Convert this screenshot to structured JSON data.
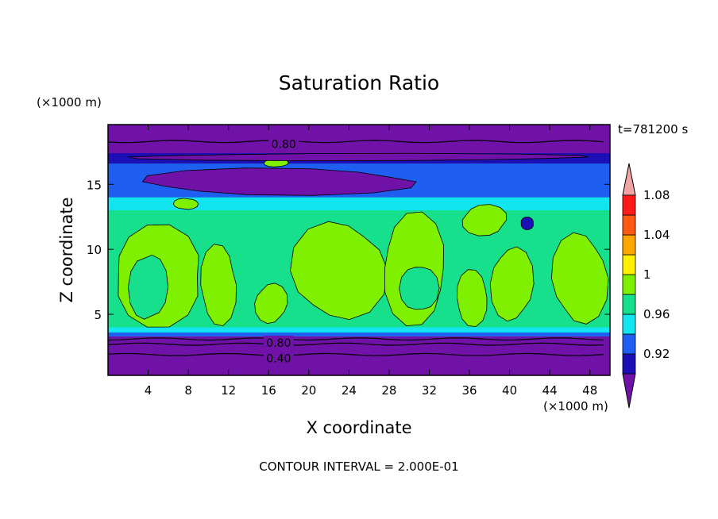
{
  "chart_data": {
    "type": "heatmap",
    "title": "Saturation Ratio",
    "xlabel": "X coordinate",
    "ylabel": "Z coordinate",
    "x_unit": "(×1000 m)",
    "y_unit": "(×1000 m)",
    "time_label": "t=781200 s",
    "footer": "CONTOUR INTERVAL = 2.000E-01",
    "xlim": [
      0,
      50
    ],
    "ylim": [
      0.3,
      19.6
    ],
    "x_ticks": [
      4,
      8,
      12,
      16,
      20,
      24,
      28,
      32,
      36,
      40,
      44,
      48
    ],
    "y_ticks": [
      5,
      10,
      15
    ],
    "contour_labels": [
      {
        "text": "0.80",
        "x": 17.5,
        "y": 18.1
      },
      {
        "text": "0.80",
        "x": 17.0,
        "y": 2.8
      },
      {
        "text": "0.40",
        "x": 17.0,
        "y": 1.6
      }
    ],
    "colorbar": {
      "levels": [
        0.92,
        0.94,
        0.96,
        0.98,
        1.0,
        1.02,
        1.04,
        1.06,
        1.08
      ],
      "tick_labels": [
        "0.92",
        "0.96",
        "1",
        "1.04",
        "1.08"
      ],
      "colors": [
        "#7012a8",
        "#1b0fb5",
        "#1e5ef0",
        "#12e4f0",
        "#16e08c",
        "#7ff000",
        "#fff000",
        "#ffa500",
        "#ff5a12",
        "#ff1a1a",
        "#f2a3a3"
      ]
    },
    "bands": [
      {
        "z0": 0.3,
        "z1": 3.3,
        "color": "#7012a8"
      },
      {
        "z0": 3.3,
        "z1": 3.6,
        "color": "#1e5ef0"
      },
      {
        "z0": 3.6,
        "z1": 4.0,
        "color": "#12e4f0"
      },
      {
        "z0": 4.0,
        "z1": 13.0,
        "color": "#16e08c"
      },
      {
        "z0": 13.0,
        "z1": 14.0,
        "color": "#12e4f0"
      },
      {
        "z0": 14.0,
        "z1": 16.6,
        "color": "#1e5ef0"
      },
      {
        "z0": 16.6,
        "z1": 17.4,
        "color": "#1b0fb5"
      },
      {
        "z0": 17.4,
        "z1": 19.6,
        "color": "#7012a8"
      }
    ],
    "patches": [
      {
        "x": [
          0.0,
          10.0
        ],
        "z": [
          3.9,
          12.0
        ],
        "color": "#7ff000"
      },
      {
        "x": [
          2.0,
          6.0
        ],
        "z": [
          4.2,
          10.0
        ],
        "color": "#16e08c"
      },
      {
        "x": [
          9.0,
          13.0
        ],
        "z": [
          4.0,
          10.5
        ],
        "color": "#7ff000"
      },
      {
        "x": [
          14.5,
          18.0
        ],
        "z": [
          4.2,
          7.5
        ],
        "color": "#7ff000"
      },
      {
        "x": [
          18.0,
          28.0
        ],
        "z": [
          4.2,
          12.5
        ],
        "color": "#7ff000"
      },
      {
        "x": [
          27.0,
          34.0
        ],
        "z": [
          4.0,
          13.0
        ],
        "color": "#7ff000"
      },
      {
        "x": [
          29.0,
          33.0
        ],
        "z": [
          5.0,
          9.0
        ],
        "color": "#16e08c"
      },
      {
        "x": [
          34.5,
          38.0
        ],
        "z": [
          4.0,
          8.5
        ],
        "color": "#7ff000"
      },
      {
        "x": [
          38.0,
          42.5
        ],
        "z": [
          4.2,
          10.5
        ],
        "color": "#7ff000"
      },
      {
        "x": [
          44.0,
          50.0
        ],
        "z": [
          4.0,
          11.5
        ],
        "color": "#7ff000"
      },
      {
        "x": [
          35.0,
          40.0
        ],
        "z": [
          11.0,
          13.5
        ],
        "color": "#7ff000"
      },
      {
        "x": [
          6.5,
          9.0
        ],
        "z": [
          13.0,
          14.0
        ],
        "color": "#7ff000"
      },
      {
        "x": [
          41.0,
          42.5
        ],
        "z": [
          11.5,
          12.5
        ],
        "color": "#1b0fb5"
      },
      {
        "x": [
          15.5,
          18.0
        ],
        "z": [
          16.3,
          17.0
        ],
        "color": "#7ff000"
      },
      {
        "x": [
          2.0,
          32.0
        ],
        "z": [
          14.1,
          16.3
        ],
        "color": "#7012a8"
      },
      {
        "x": [
          0.0,
          50.0
        ],
        "z": [
          16.8,
          17.4
        ],
        "color": "#7012a8"
      }
    ],
    "contour_lines": [
      {
        "z": 18.3
      },
      {
        "z": 3.1
      },
      {
        "z": 2.7
      },
      {
        "z": 1.9
      }
    ]
  }
}
